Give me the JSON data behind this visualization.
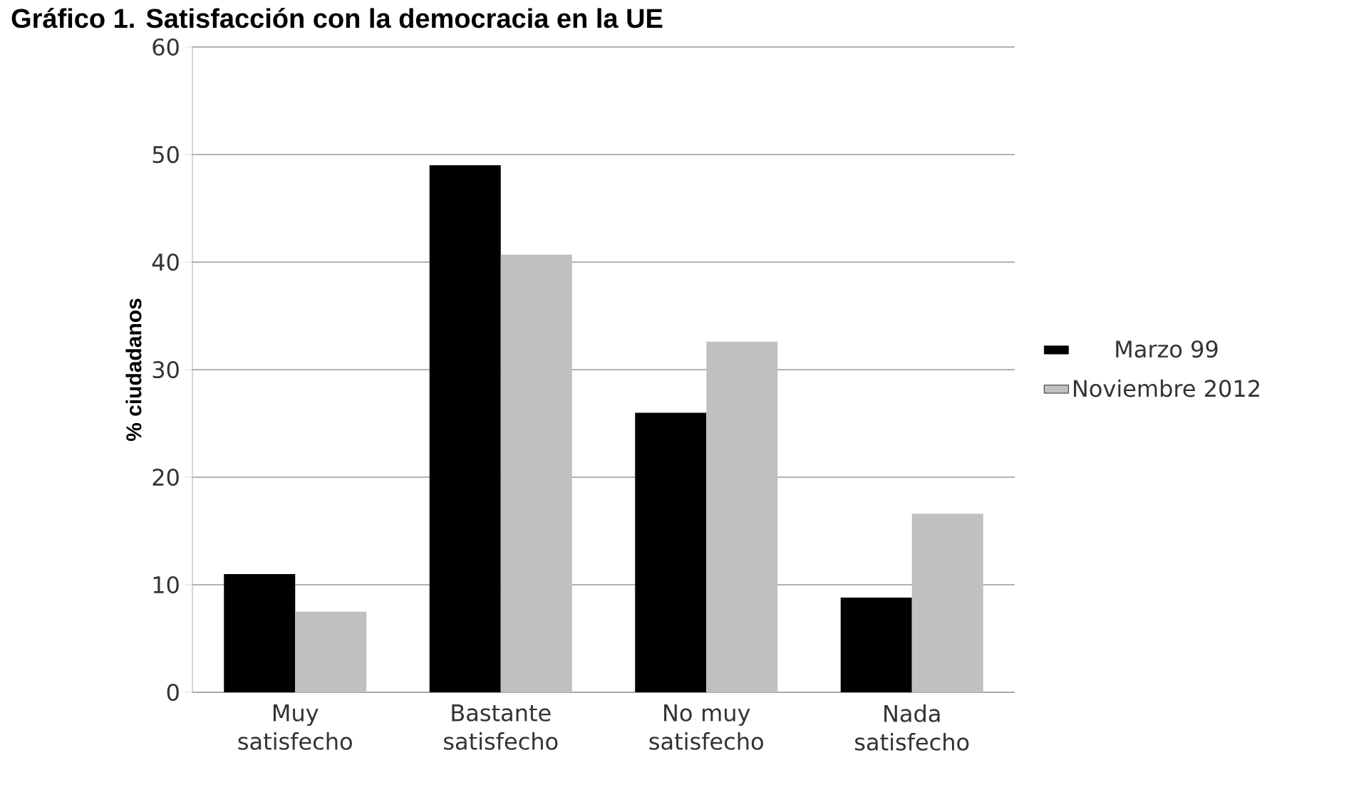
{
  "chart_data": {
    "type": "bar",
    "title": "Gráfico 1. Satisfacción con la democracia en la UE",
    "ylabel": "% ciudadanos",
    "categories": [
      "Muy satisfecho",
      "Bastante satisfecho",
      "No muy satisfecho",
      "Nada satisfecho"
    ],
    "series": [
      {
        "name": "Marzo 99",
        "color": "#000000",
        "values": [
          11,
          49,
          26,
          8.8
        ]
      },
      {
        "name": "Noviembre 2012",
        "color": "#c0c0c0",
        "values": [
          7.5,
          40.7,
          32.6,
          16.6
        ]
      }
    ],
    "ylim": [
      0,
      60
    ],
    "yticks": [
      0,
      10,
      20,
      30,
      40,
      50,
      60
    ],
    "grid": "y",
    "legend": "right"
  }
}
